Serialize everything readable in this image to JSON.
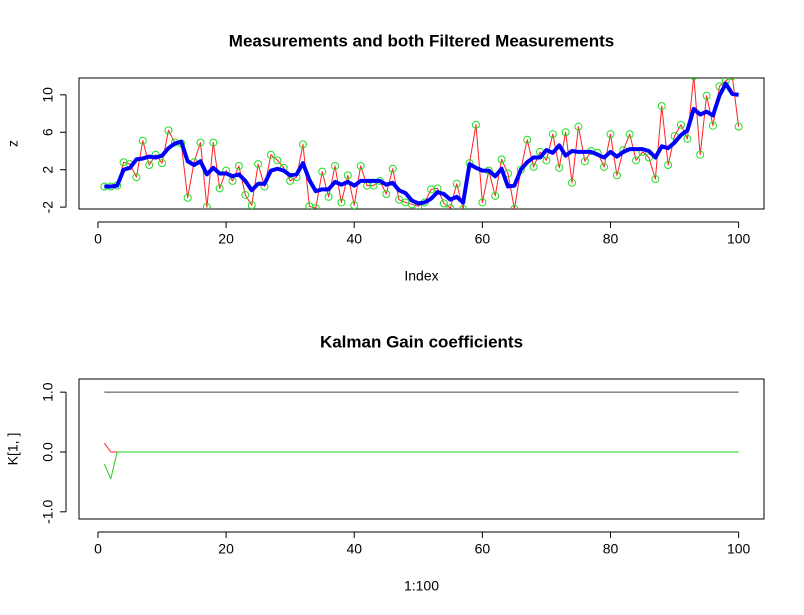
{
  "chart_data": [
    {
      "type": "line",
      "title": "Measurements and both Filtered Measurements",
      "x_label": "Index",
      "y_label": "z",
      "x": [
        1,
        2,
        3,
        4,
        5,
        6,
        7,
        8,
        9,
        10,
        11,
        12,
        13,
        14,
        15,
        16,
        17,
        18,
        19,
        20,
        21,
        22,
        23,
        24,
        25,
        26,
        27,
        28,
        29,
        30,
        31,
        32,
        33,
        34,
        35,
        36,
        37,
        38,
        39,
        40,
        41,
        42,
        43,
        44,
        45,
        46,
        47,
        48,
        49,
        50,
        51,
        52,
        53,
        54,
        55,
        56,
        57,
        58,
        59,
        60,
        61,
        62,
        63,
        64,
        65,
        66,
        67,
        68,
        69,
        70,
        71,
        72,
        73,
        74,
        75,
        76,
        77,
        78,
        79,
        80,
        81,
        82,
        83,
        84,
        85,
        86,
        87,
        88,
        89,
        90,
        91,
        92,
        93,
        94,
        95,
        96,
        97,
        98,
        99,
        100
      ],
      "series": [
        {
          "color": "#ff2020",
          "marker_color": "#22dd22",
          "marker": true,
          "width": 1,
          "values": [
            0.2,
            0.2,
            0.3,
            2.8,
            2.6,
            1.2,
            5.1,
            2.5,
            3.6,
            2.7,
            6.2,
            4.9,
            4.8,
            -1.0,
            2.8,
            4.9,
            -2.0,
            4.9,
            0.0,
            1.9,
            0.8,
            2.4,
            -0.7,
            -1.8,
            2.6,
            0.2,
            3.6,
            3.0,
            2.2,
            0.8,
            1.2,
            4.7,
            -1.9,
            -2.1,
            1.8,
            -0.9,
            2.4,
            -1.5,
            1.4,
            -1.8,
            2.4,
            0.3,
            0.3,
            0.8,
            -0.6,
            2.1,
            -1.2,
            -1.5,
            -1.7,
            -1.9,
            -1.5,
            -0.1,
            0.0,
            -1.6,
            -2.1,
            0.5,
            -2.2,
            2.7,
            6.8,
            -1.5,
            1.9,
            -0.8,
            3.1,
            1.6,
            -2.2,
            2.0,
            5.2,
            2.3,
            3.9,
            3.0,
            5.8,
            2.2,
            6.0,
            0.6,
            6.6,
            2.9,
            4.0,
            3.8,
            2.3,
            5.8,
            1.4,
            4.1,
            5.8,
            3.0,
            3.9,
            3.3,
            1.0,
            8.8,
            2.5,
            5.6,
            6.8,
            5.3,
            12.0,
            3.6,
            9.9,
            6.7,
            10.9,
            11.5,
            12.0,
            6.6
          ]
        },
        {
          "color": "#0000ff",
          "marker": false,
          "width": 4,
          "values": [
            0.2,
            0.2,
            0.3,
            2.0,
            2.2,
            3.1,
            3.2,
            3.4,
            3.3,
            3.5,
            4.3,
            4.8,
            5.0,
            2.9,
            2.5,
            2.9,
            1.5,
            2.2,
            1.6,
            1.6,
            1.3,
            1.5,
            0.8,
            -0.2,
            0.5,
            0.5,
            1.9,
            2.1,
            1.9,
            1.4,
            1.5,
            2.7,
            0.9,
            -0.3,
            -0.1,
            -0.1,
            0.7,
            0.4,
            0.7,
            0.3,
            0.8,
            0.8,
            0.8,
            0.8,
            0.4,
            0.6,
            -0.2,
            -0.5,
            -1.3,
            -1.6,
            -1.5,
            -1.1,
            -0.4,
            -0.6,
            -1.2,
            -0.9,
            -1.5,
            2.6,
            2.2,
            1.9,
            1.9,
            1.3,
            2.1,
            0.2,
            0.3,
            2.0,
            2.8,
            3.3,
            3.3,
            4.1,
            3.8,
            4.6,
            3.5,
            4.0,
            3.9,
            3.9,
            3.9,
            3.6,
            3.3,
            3.9,
            3.4,
            3.9,
            4.2,
            4.2,
            4.2,
            4.0,
            3.3,
            4.5,
            4.3,
            4.9,
            5.7,
            6.2,
            8.5,
            7.9,
            8.2,
            7.8,
            9.9,
            11.2,
            10.1,
            10.0
          ]
        }
      ],
      "xlim": [
        -2.96,
        103.96
      ],
      "xticks": [
        0,
        20,
        40,
        60,
        80,
        100
      ],
      "ylim": [
        -2.2,
        11.8
      ],
      "yticks": [
        -2,
        2,
        6,
        10
      ]
    },
    {
      "type": "line",
      "title": "Kalman Gain coefficients",
      "x_label": "1:100",
      "y_label": "K[1, ]",
      "x": [
        1,
        2,
        3,
        4,
        5,
        6,
        7,
        8,
        9,
        10,
        11,
        12,
        13,
        14,
        15,
        16,
        17,
        18,
        19,
        20,
        21,
        22,
        23,
        24,
        25,
        26,
        27,
        28,
        29,
        30,
        31,
        32,
        33,
        34,
        35,
        36,
        37,
        38,
        39,
        40,
        41,
        42,
        43,
        44,
        45,
        46,
        47,
        48,
        49,
        50,
        51,
        52,
        53,
        54,
        55,
        56,
        57,
        58,
        59,
        60,
        61,
        62,
        63,
        64,
        65,
        66,
        67,
        68,
        69,
        70,
        71,
        72,
        73,
        74,
        75,
        76,
        77,
        78,
        79,
        80,
        81,
        82,
        83,
        84,
        85,
        86,
        87,
        88,
        89,
        90,
        91,
        92,
        93,
        94,
        95,
        96,
        97,
        98,
        99,
        100
      ],
      "series": [
        {
          "color": "#444444",
          "marker": false,
          "width": 1,
          "values": [
            1,
            1,
            1,
            1,
            1,
            1,
            1,
            1,
            1,
            1,
            1,
            1,
            1,
            1,
            1,
            1,
            1,
            1,
            1,
            1,
            1,
            1,
            1,
            1,
            1,
            1,
            1,
            1,
            1,
            1,
            1,
            1,
            1,
            1,
            1,
            1,
            1,
            1,
            1,
            1,
            1,
            1,
            1,
            1,
            1,
            1,
            1,
            1,
            1,
            1,
            1,
            1,
            1,
            1,
            1,
            1,
            1,
            1,
            1,
            1,
            1,
            1,
            1,
            1,
            1,
            1,
            1,
            1,
            1,
            1,
            1,
            1,
            1,
            1,
            1,
            1,
            1,
            1,
            1,
            1,
            1,
            1,
            1,
            1,
            1,
            1,
            1,
            1,
            1,
            1,
            1,
            1,
            1,
            1,
            1,
            1,
            1,
            1,
            1,
            1
          ]
        },
        {
          "color": "#ff2020",
          "marker": false,
          "width": 1,
          "values": [
            0.15,
            0,
            0,
            0,
            0,
            0,
            0,
            0,
            0,
            0,
            0,
            0,
            0,
            0,
            0,
            0,
            0,
            0,
            0,
            0,
            0,
            0,
            0,
            0,
            0,
            0,
            0,
            0,
            0,
            0,
            0,
            0,
            0,
            0,
            0,
            0,
            0,
            0,
            0,
            0,
            0,
            0,
            0,
            0,
            0,
            0,
            0,
            0,
            0,
            0,
            0,
            0,
            0,
            0,
            0,
            0,
            0,
            0,
            0,
            0,
            0,
            0,
            0,
            0,
            0,
            0,
            0,
            0,
            0,
            0,
            0,
            0,
            0,
            0,
            0,
            0,
            0,
            0,
            0,
            0,
            0,
            0,
            0,
            0,
            0,
            0,
            0,
            0,
            0,
            0,
            0,
            0,
            0,
            0,
            0,
            0,
            0,
            0,
            0,
            0
          ]
        },
        {
          "color": "#22cc22",
          "marker": false,
          "width": 1,
          "values": [
            -0.2,
            -0.45,
            0,
            0,
            0,
            0,
            0,
            0,
            0,
            0,
            0,
            0,
            0,
            0,
            0,
            0,
            0,
            0,
            0,
            0,
            0,
            0,
            0,
            0,
            0,
            0,
            0,
            0,
            0,
            0,
            0,
            0,
            0,
            0,
            0,
            0,
            0,
            0,
            0,
            0,
            0,
            0,
            0,
            0,
            0,
            0,
            0,
            0,
            0,
            0,
            0,
            0,
            0,
            0,
            0,
            0,
            0,
            0,
            0,
            0,
            0,
            0,
            0,
            0,
            0,
            0,
            0,
            0,
            0,
            0,
            0,
            0,
            0,
            0,
            0,
            0,
            0,
            0,
            0,
            0,
            0,
            0,
            0,
            0,
            0,
            0,
            0,
            0,
            0,
            0,
            0,
            0,
            0,
            0,
            0,
            0,
            0,
            0,
            0,
            0
          ]
        }
      ],
      "xlim": [
        -2.96,
        103.96
      ],
      "xticks": [
        0,
        20,
        40,
        60,
        80,
        100
      ],
      "ylim": [
        -1.12,
        1.22
      ],
      "yticks": [
        {
          "value": -1,
          "label": "-1.0"
        },
        {
          "value": 0,
          "label": "0.0"
        },
        {
          "value": 1,
          "label": "1.0"
        }
      ]
    }
  ]
}
